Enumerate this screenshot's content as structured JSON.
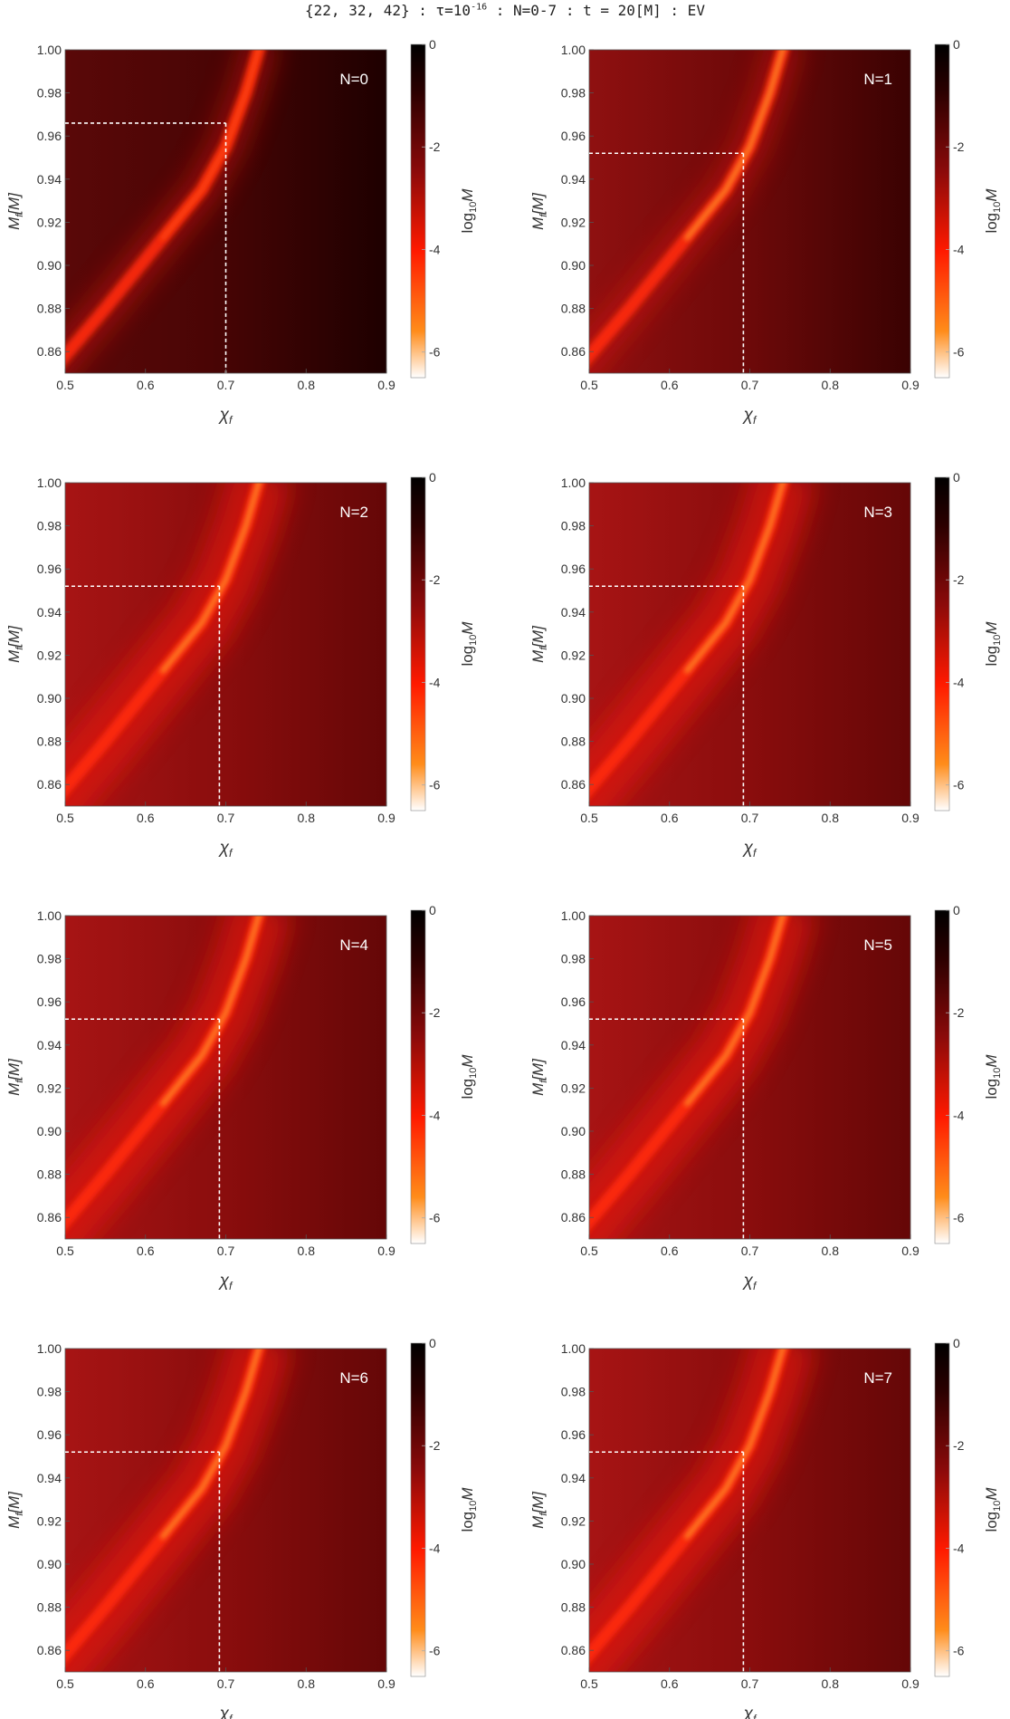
{
  "title": {
    "prefix": "{22, 32, 42} : τ=10",
    "exponent": "-16",
    "suffix": " : N=0-7 : t = 20[M] : EV"
  },
  "colors": {
    "dark": "#2a0000",
    "mid": "#8b0a0a",
    "red": "#ff1a00",
    "orange": "#ff8c1a",
    "light": "#ffffff",
    "guide": "#ffffff"
  },
  "chart_data": {
    "type": "heatmap",
    "xlabel": "χ_f",
    "ylabel": "M_f[M]",
    "colorbar_label": "log10 M",
    "xlim": [
      0.5,
      0.9
    ],
    "ylim": [
      0.85,
      1.0
    ],
    "clim": [
      -6.5,
      0
    ],
    "xticks": [
      "0.5",
      "0.6",
      "0.7",
      "0.8",
      "0.9"
    ],
    "yticks": [
      "0.86",
      "0.88",
      "0.90",
      "0.92",
      "0.94",
      "0.96",
      "0.98",
      "1.00"
    ],
    "colorbar_ticks": [
      "0",
      "-2",
      "-4",
      "-6"
    ],
    "panels": [
      {
        "label": "N=0",
        "best_fit": {
          "chi_f": 0.7,
          "M_f": 0.966
        }
      },
      {
        "label": "N=1",
        "best_fit": {
          "chi_f": 0.692,
          "M_f": 0.952
        }
      },
      {
        "label": "N=2",
        "best_fit": {
          "chi_f": 0.692,
          "M_f": 0.952
        }
      },
      {
        "label": "N=3",
        "best_fit": {
          "chi_f": 0.692,
          "M_f": 0.952
        }
      },
      {
        "label": "N=4",
        "best_fit": {
          "chi_f": 0.692,
          "M_f": 0.952
        }
      },
      {
        "label": "N=5",
        "best_fit": {
          "chi_f": 0.692,
          "M_f": 0.952
        }
      },
      {
        "label": "N=6",
        "best_fit": {
          "chi_f": 0.692,
          "M_f": 0.952
        }
      },
      {
        "label": "N=7",
        "best_fit": {
          "chi_f": 0.692,
          "M_f": 0.952
        }
      }
    ]
  }
}
